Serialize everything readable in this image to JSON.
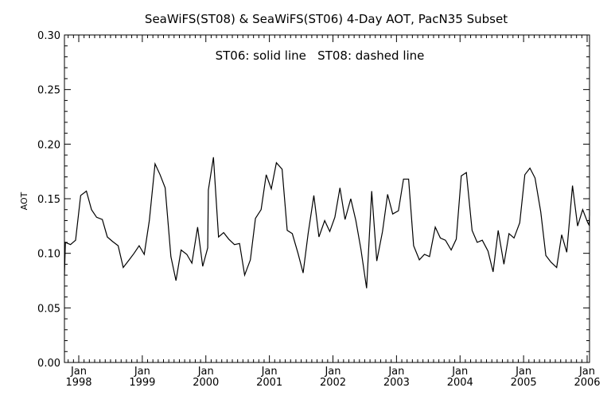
{
  "chart_data": {
    "type": "line",
    "title": "SeaWiFS(ST08) & SeaWiFS(ST06) 4-Day AOT, PacN35 Subset",
    "annotation": "ST06: solid line   ST08: dashed line",
    "ylabel": "AOT",
    "xlabel": "",
    "ylim": [
      0,
      0.3
    ],
    "xlim": [
      1997.75,
      2006.1
    ],
    "yticks": [
      "0.00",
      "0.05",
      "0.10",
      "0.15",
      "0.20",
      "0.25",
      "0.30"
    ],
    "xticks": [
      {
        "month": "Jan",
        "year": "1998"
      },
      {
        "month": "Jan",
        "year": "1999"
      },
      {
        "month": "Jan",
        "year": "2000"
      },
      {
        "month": "Jan",
        "year": "2001"
      },
      {
        "month": "Jan",
        "year": "2002"
      },
      {
        "month": "Jan",
        "year": "2003"
      },
      {
        "month": "Jan",
        "year": "2004"
      },
      {
        "month": "Jan",
        "year": "2005"
      },
      {
        "month": "Jan",
        "year": "2006"
      }
    ],
    "grid": false,
    "series": [
      {
        "name": "ST06",
        "style": "solid",
        "x": [
          1997.75,
          1997.79,
          1997.87,
          1997.95,
          1998.03,
          1998.12,
          1998.2,
          1998.28,
          1998.37,
          1998.45,
          1998.53,
          1998.62,
          1998.7,
          1998.78,
          1998.87,
          1998.95,
          1999.03,
          1999.11,
          1999.2,
          1999.28,
          1999.36,
          1999.45,
          1999.53,
          1999.61,
          1999.7,
          1999.78,
          1999.87,
          1999.95,
          2000.03,
          2000.04,
          2000.12,
          2000.2,
          2000.28,
          2000.36,
          2000.45,
          2000.53,
          2000.61,
          2000.7,
          2000.78,
          2000.87,
          2000.95,
          2001.03,
          2001.11,
          2001.2,
          2001.28,
          2001.36,
          2001.45,
          2001.53,
          2001.61,
          2001.7,
          2001.78,
          2001.87,
          2001.95,
          2002.03,
          2002.11,
          2002.19,
          2002.28,
          2002.36,
          2002.44,
          2002.53,
          2002.61,
          2002.69,
          2002.78,
          2002.86,
          2002.94,
          2003.03,
          2003.11,
          2003.19,
          2003.27,
          2003.36,
          2003.44,
          2003.52,
          2003.61,
          2003.69,
          2003.77,
          2003.86,
          2003.94,
          2004.02,
          2004.1,
          2004.19,
          2004.27,
          2004.35,
          2004.44,
          2004.52,
          2004.6,
          2004.69,
          2004.77,
          2004.85,
          2004.94,
          2005.02,
          2005.1,
          2005.18,
          2005.27,
          2005.35,
          2005.43,
          2005.52,
          2005.6,
          2005.68,
          2005.77,
          2005.85,
          2005.93,
          2006.01,
          2006.03,
          2006.07,
          2006.1
        ],
        "y": [
          0.08,
          0.11,
          0.108,
          0.112,
          0.153,
          0.157,
          0.14,
          0.133,
          0.131,
          0.115,
          0.111,
          0.107,
          0.087,
          0.093,
          0.1,
          0.107,
          0.099,
          0.13,
          0.182,
          0.172,
          0.16,
          0.097,
          0.075,
          0.103,
          0.099,
          0.091,
          0.124,
          0.088,
          0.105,
          0.158,
          0.188,
          0.115,
          0.119,
          0.113,
          0.108,
          0.109,
          0.08,
          0.094,
          0.132,
          0.14,
          0.172,
          0.159,
          0.183,
          0.177,
          0.121,
          0.118,
          0.1,
          0.082,
          0.118,
          0.153,
          0.115,
          0.13,
          0.12,
          0.133,
          0.16,
          0.131,
          0.15,
          0.13,
          0.104,
          0.068,
          0.157,
          0.093,
          0.12,
          0.154,
          0.136,
          0.139,
          0.168,
          0.168,
          0.107,
          0.094,
          0.099,
          0.097,
          0.124,
          0.114,
          0.112,
          0.103,
          0.113,
          0.171,
          0.174,
          0.121,
          0.11,
          0.112,
          0.102,
          0.083,
          0.121,
          0.09,
          0.118,
          0.114,
          0.128,
          0.172,
          0.178,
          0.169,
          0.138,
          0.098,
          0.092,
          0.087,
          0.117,
          0.101,
          0.162,
          0.125,
          0.14,
          0.128,
          0.126,
          0.135,
          0.14
        ]
      }
    ]
  }
}
